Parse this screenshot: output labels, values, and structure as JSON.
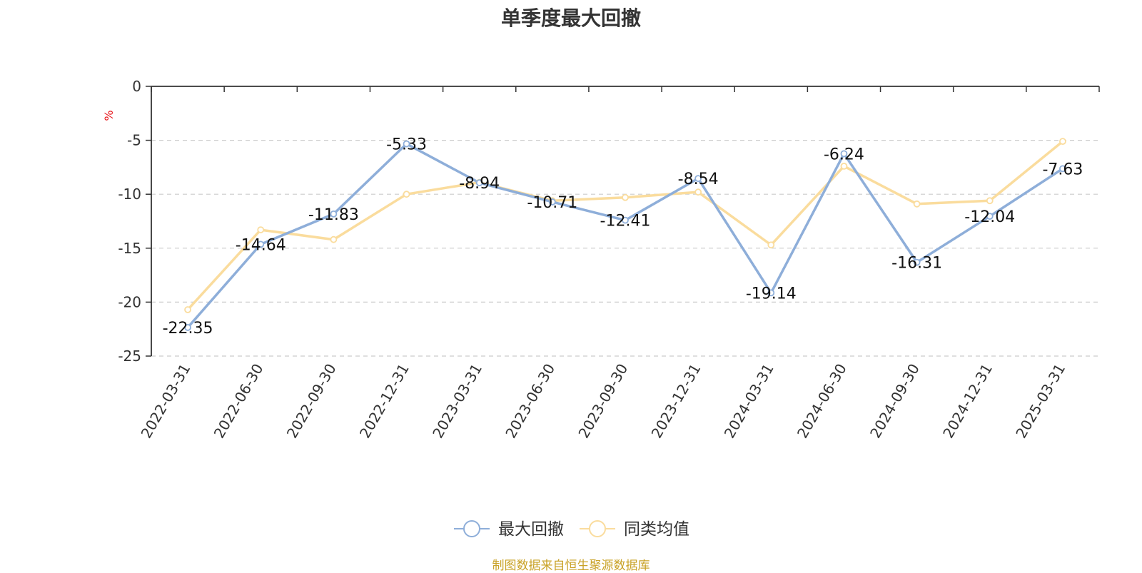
{
  "title": "单季度最大回撤",
  "footer": "制图数据来自恒生聚源数据库",
  "chart_data": {
    "type": "line",
    "title": "单季度最大回撤",
    "ylabel": "%",
    "ylim": [
      -25,
      0
    ],
    "yticks": [
      0,
      -5,
      -10,
      -15,
      -20,
      -25
    ],
    "grid": true,
    "legend_position": "bottom",
    "categories": [
      "2022-03-31",
      "2022-06-30",
      "2022-09-30",
      "2022-12-31",
      "2023-03-31",
      "2023-06-30",
      "2023-09-30",
      "2023-12-31",
      "2024-03-31",
      "2024-06-30",
      "2024-09-30",
      "2024-12-31",
      "2025-03-31"
    ],
    "series": [
      {
        "name": "最大回撤",
        "color": "#8eaed9",
        "values": [
          -22.35,
          -14.64,
          -11.83,
          -5.33,
          -8.94,
          -10.71,
          -12.41,
          -8.54,
          -19.14,
          -6.24,
          -16.31,
          -12.04,
          -7.63
        ]
      },
      {
        "name": "同类均值",
        "color": "#fadc9d",
        "values": [
          -20.7,
          -13.3,
          -14.2,
          -10.0,
          -8.9,
          -10.6,
          -10.3,
          -9.8,
          -14.7,
          -7.4,
          -10.9,
          -10.6,
          -5.1
        ]
      }
    ]
  }
}
